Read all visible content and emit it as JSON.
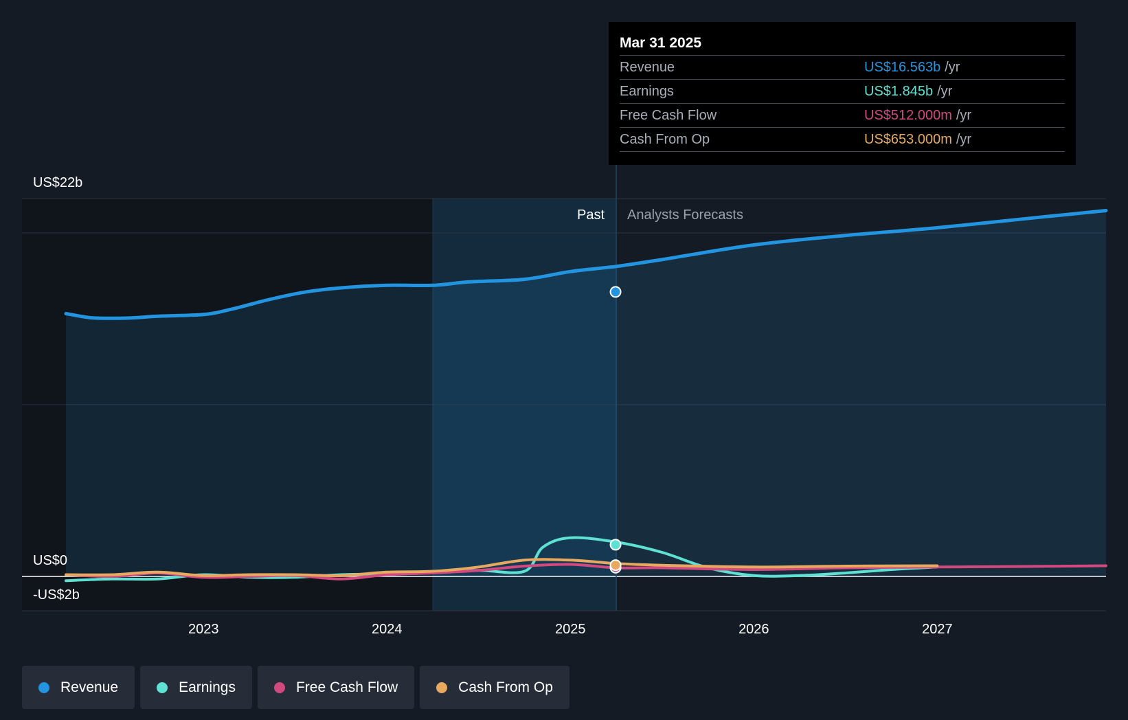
{
  "chart_data": {
    "type": "line",
    "title": "",
    "y_axis": {
      "top_label": "US$22b",
      "zero_label": "US$0",
      "bottom_label": "-US$2b",
      "ylim": [
        -2,
        22
      ],
      "unit": "US$ billions"
    },
    "x_axis": {
      "ticks": [
        "2023",
        "2024",
        "2025",
        "2026",
        "2027"
      ],
      "xlim": [
        2022.25,
        2027.92
      ]
    },
    "regions": {
      "past_label": "Past",
      "forecast_label": "Analysts Forecasts",
      "divider_x": 2025.25,
      "past_shade_start": 2024.25
    },
    "series": [
      {
        "name": "Revenue",
        "color": "#2394df",
        "marker_value": 16.563,
        "area": true,
        "points": [
          [
            2022.25,
            15.3
          ],
          [
            2022.4,
            15.05
          ],
          [
            2022.6,
            15.05
          ],
          [
            2022.75,
            15.15
          ],
          [
            2023.0,
            15.25
          ],
          [
            2023.15,
            15.55
          ],
          [
            2023.35,
            16.1
          ],
          [
            2023.55,
            16.55
          ],
          [
            2023.75,
            16.8
          ],
          [
            2024.0,
            16.95
          ],
          [
            2024.25,
            16.95
          ],
          [
            2024.45,
            17.15
          ],
          [
            2024.75,
            17.3
          ],
          [
            2025.0,
            17.75
          ],
          [
            2025.25,
            18.05
          ],
          [
            2025.5,
            18.45
          ],
          [
            2026.0,
            19.3
          ],
          [
            2026.5,
            19.85
          ],
          [
            2027.0,
            20.3
          ],
          [
            2027.5,
            20.85
          ],
          [
            2027.92,
            21.3
          ]
        ]
      },
      {
        "name": "Earnings",
        "color": "#5ee1d3",
        "marker_value": 1.845,
        "points": [
          [
            2022.25,
            -0.25
          ],
          [
            2022.5,
            -0.15
          ],
          [
            2022.75,
            -0.15
          ],
          [
            2023.0,
            0.1
          ],
          [
            2023.25,
            -0.05
          ],
          [
            2023.5,
            -0.05
          ],
          [
            2023.75,
            0.1
          ],
          [
            2024.0,
            0.15
          ],
          [
            2024.25,
            0.25
          ],
          [
            2024.5,
            0.35
          ],
          [
            2024.75,
            0.3
          ],
          [
            2024.85,
            1.7
          ],
          [
            2025.0,
            2.25
          ],
          [
            2025.25,
            2.0
          ],
          [
            2025.5,
            1.4
          ],
          [
            2025.75,
            0.5
          ],
          [
            2026.0,
            0.05
          ],
          [
            2026.25,
            0.05
          ],
          [
            2026.5,
            0.2
          ],
          [
            2026.75,
            0.4
          ],
          [
            2027.0,
            0.55
          ]
        ]
      },
      {
        "name": "Free Cash Flow",
        "color": "#d1497f",
        "marker_value": 0.512,
        "points": [
          [
            2022.25,
            0.1
          ],
          [
            2022.5,
            0.0
          ],
          [
            2022.75,
            0.2
          ],
          [
            2023.0,
            -0.05
          ],
          [
            2023.25,
            0.0
          ],
          [
            2023.5,
            0.05
          ],
          [
            2023.75,
            -0.15
          ],
          [
            2024.0,
            0.1
          ],
          [
            2024.25,
            0.2
          ],
          [
            2024.5,
            0.35
          ],
          [
            2024.75,
            0.6
          ],
          [
            2025.0,
            0.7
          ],
          [
            2025.25,
            0.5
          ],
          [
            2025.5,
            0.5
          ],
          [
            2026.0,
            0.4
          ],
          [
            2026.5,
            0.5
          ],
          [
            2027.0,
            0.55
          ],
          [
            2027.5,
            0.58
          ],
          [
            2027.92,
            0.62
          ]
        ]
      },
      {
        "name": "Cash From Op",
        "color": "#e7a960",
        "marker_value": 0.653,
        "points": [
          [
            2022.25,
            0.1
          ],
          [
            2022.5,
            0.1
          ],
          [
            2022.75,
            0.25
          ],
          [
            2023.0,
            0.05
          ],
          [
            2023.25,
            0.1
          ],
          [
            2023.5,
            0.1
          ],
          [
            2023.75,
            0.05
          ],
          [
            2024.0,
            0.25
          ],
          [
            2024.25,
            0.3
          ],
          [
            2024.5,
            0.55
          ],
          [
            2024.75,
            0.95
          ],
          [
            2025.0,
            0.95
          ],
          [
            2025.25,
            0.75
          ],
          [
            2025.5,
            0.65
          ],
          [
            2026.0,
            0.55
          ],
          [
            2026.5,
            0.6
          ],
          [
            2027.0,
            0.62
          ]
        ]
      }
    ]
  },
  "tooltip": {
    "date": "Mar 31 2025",
    "rows": [
      {
        "label": "Revenue",
        "value": "US$16.563b",
        "unit": "/yr",
        "color": "#2394df"
      },
      {
        "label": "Earnings",
        "value": "US$1.845b",
        "unit": "/yr",
        "color": "#5ee1d3"
      },
      {
        "label": "Free Cash Flow",
        "value": "US$512.000m",
        "unit": "/yr",
        "color": "#d1497f"
      },
      {
        "label": "Cash From Op",
        "value": "US$653.000m",
        "unit": "/yr",
        "color": "#e7a960"
      }
    ]
  },
  "legend": [
    {
      "label": "Revenue",
      "color": "#2394df"
    },
    {
      "label": "Earnings",
      "color": "#5ee1d3"
    },
    {
      "label": "Free Cash Flow",
      "color": "#d1497f"
    },
    {
      "label": "Cash From Op",
      "color": "#e7a960"
    }
  ]
}
